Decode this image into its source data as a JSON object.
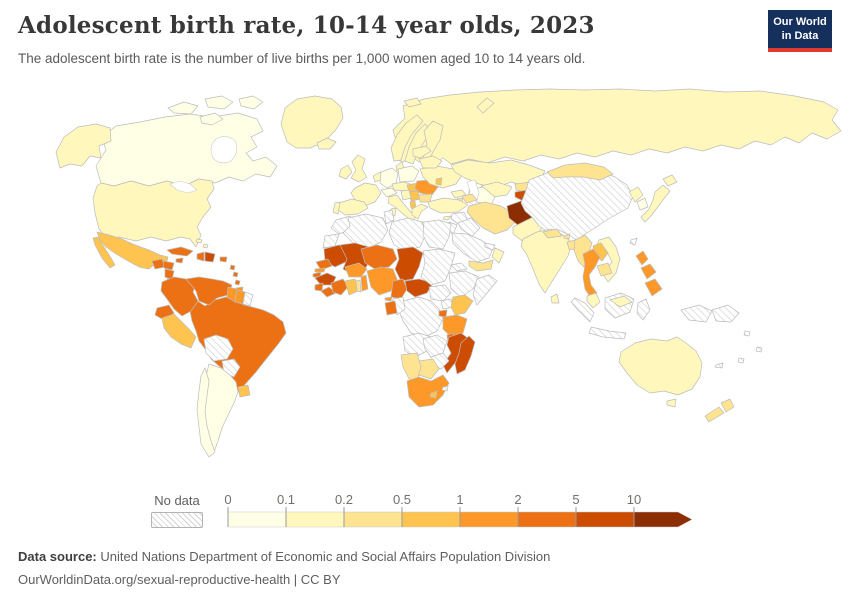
{
  "header": {
    "title": "Adolescent birth rate, 10-14 year olds, 2023",
    "subtitle": "The adolescent birth rate is the number of live births per 1,000 women aged 10 to 14 years old.",
    "logo": {
      "line1": "Our World",
      "line2": "in Data"
    }
  },
  "legend": {
    "no_data_label": "No data",
    "ticks": [
      "0",
      "0.1",
      "0.2",
      "0.5",
      "1",
      "2",
      "5",
      "10"
    ]
  },
  "footer": {
    "source_label": "Data source:",
    "source_text": "United Nations Department of Economic and Social Affairs Population Division",
    "license_text": "OurWorldinData.org/sexual-reproductive-health | CC BY"
  },
  "chart_data": {
    "type": "choropleth_map",
    "title": "Adolescent birth rate, 10-14 year olds, 2023",
    "unit": "live births per 1,000 women aged 10 to 14",
    "year": 2023,
    "palette_name": "YlOrBr",
    "no_data_style": "hatched",
    "scale_ticks": [
      0,
      0.1,
      0.2,
      0.5,
      1,
      2,
      5,
      10
    ],
    "bins": [
      {
        "key": "b1",
        "range": "0-0.1",
        "color": "#ffffe5"
      },
      {
        "key": "b2",
        "range": "0.1-0.2",
        "color": "#fff7bc"
      },
      {
        "key": "b3",
        "range": "0.2-0.5",
        "color": "#fee391"
      },
      {
        "key": "b4",
        "range": "0.5-1",
        "color": "#fec44f"
      },
      {
        "key": "b5",
        "range": "1-2",
        "color": "#fe9929"
      },
      {
        "key": "b6",
        "range": "2-5",
        "color": "#ec7014"
      },
      {
        "key": "b7",
        "range": "5-10",
        "color": "#cc4c02"
      },
      {
        "key": "b8",
        "range": ">10",
        "color": "#8c2d04"
      }
    ],
    "regions": {
      "canada": "b1",
      "usa": "b2",
      "greenland": "b2",
      "iceland": "b2",
      "mexico": "b4",
      "guatemala": "b6",
      "honduras": "b6",
      "nicaragua": "b6",
      "costa-rica": "b5",
      "panama": "b6",
      "cuba": "b6",
      "jamaica": "b6",
      "haiti": "b6",
      "dominican-republic": "b7",
      "puerto-rico": "b6",
      "lesser-antilles": "b6",
      "trinidad-and-tobago": "b5",
      "bahamas": "b2",
      "colombia": "b6",
      "venezuela": "b6",
      "guyana": "b5",
      "suriname": "b5",
      "french-guiana": "nd",
      "ecuador": "b6",
      "peru": "b4",
      "brazil": "b6",
      "bolivia": "nd",
      "paraguay": "nd",
      "uruguay": "b4",
      "argentina": "b1",
      "chile": "b1",
      "norway": "b2",
      "sweden": "b2",
      "finland": "b2",
      "denmark": "b2",
      "united-kingdom": "b2",
      "ireland": "b2",
      "france": "b2",
      "spain": "b2",
      "portugal": "b2",
      "benelux": "b2",
      "germany": "b1",
      "poland": "b1",
      "czechia-slovakia": "b2",
      "austria-switzerland": "b1",
      "italy": "b2",
      "hungary": "b4",
      "romania": "b5",
      "serbia": "b4",
      "croatia-bosnia": "b2",
      "albania": "b4",
      "bulgaria": "b3",
      "greece": "b2",
      "ukraine": "b2",
      "belarus": "b2",
      "baltic-states": "b2",
      "moldova": "b4",
      "russia": "b2",
      "svalbard": "b2",
      "novaya-zemlya": "b2",
      "kazakhstan": "b2",
      "uzbekistan": "b2",
      "turkmenistan": "b1",
      "kyrgyzstan": "b3",
      "tajikistan": "b7",
      "georgia": "b2",
      "azerbaijan": "b3",
      "armenia": "b3",
      "turkey": "b2",
      "cyprus": "b2",
      "syria": "nd",
      "iraq": "nd",
      "jordan-israel": "nd",
      "saudi-arabia": "nd",
      "yemen": "b3",
      "oman": "b2",
      "gulf-states": "nd",
      "iran": "b3",
      "afghanistan": "b8",
      "pakistan": "b2",
      "india": "b2",
      "sri-lanka": "b2",
      "nepal": "b3",
      "bhutan": "b3",
      "bangladesh": "b3",
      "myanmar": "b3",
      "thailand": "b5",
      "laos": "b4",
      "cambodia": "b3",
      "vietnam": "b2",
      "malaysia": "b2",
      "china": "nd",
      "mongolia": "b3",
      "north-korea": "b2",
      "south-korea": "b1",
      "japan": "b2",
      "taiwan": "nd",
      "philippines": "b5",
      "indonesia": "nd",
      "papua-new-guinea": "nd",
      "pacific-islands": "nd",
      "new-caledonia": "nd",
      "fiji": "nd",
      "morocco": "nd",
      "western-sahara": "nd",
      "algeria": "nd",
      "tunisia": "nd",
      "libya": "nd",
      "egypt": "nd",
      "mauritania": "b7",
      "mali": "b7",
      "senegal": "b6",
      "gambia": "b5",
      "guinea-bissau": "b6",
      "guinea": "b7",
      "sierra-leone": "b6",
      "liberia": "b6",
      "cote-divoire": "b6",
      "ghana": "b4",
      "togo": "b3",
      "benin": "b5",
      "burkina-faso": "b5",
      "niger": "b6",
      "nigeria": "b5",
      "chad": "b7",
      "cameroon": "b6",
      "central-african-republic": "b7",
      "sudan": "nd",
      "eritrea": "nd",
      "ethiopia": "nd",
      "somalia": "nd",
      "south-sudan": "nd",
      "uganda": "nd",
      "kenya": "b4",
      "rwanda-burundi": "b6",
      "dr-congo": "nd",
      "congo": "nd",
      "gabon": "b6",
      "equatorial-guinea": "b5",
      "tanzania": "b5",
      "angola": "nd",
      "zambia": "nd",
      "malawi": "b6",
      "mozambique": "b7",
      "zimbabwe": "nd",
      "botswana": "b3",
      "namibia": "b3",
      "south-africa": "b5",
      "lesotho": "b4",
      "eswatini": "nd",
      "madagascar": "b7",
      "australia": "b2",
      "new-zealand": "b3"
    }
  }
}
